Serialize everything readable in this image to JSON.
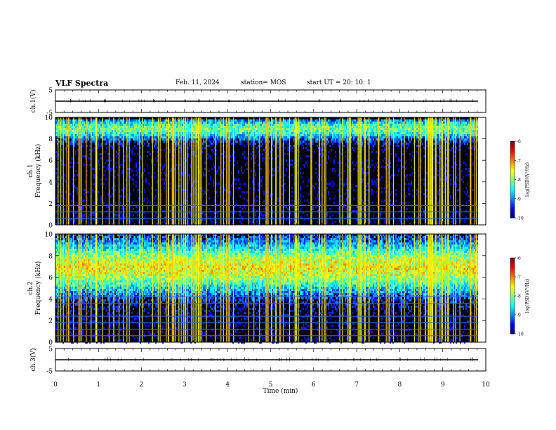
{
  "header": {
    "title": "VLF Spectra",
    "date": "Feb. 11, 2024",
    "station": "station= MOS",
    "start": "start UT = 20: 10: 1"
  },
  "chart_data": [
    {
      "type": "line",
      "panel": "ch1-waveform",
      "ylabel": "ch.1(V)",
      "ylim": [
        -5,
        5
      ],
      "yticks": [
        "5",
        "-5"
      ],
      "x": [
        0,
        10
      ],
      "values": [
        0,
        0
      ]
    },
    {
      "type": "heatmap",
      "panel": "ch1-spectrogram",
      "ylabel_line1": "ch.1",
      "ylabel_line2": "Frequency (kHz)",
      "ylim": [
        0,
        10
      ],
      "yticks": [
        "0",
        "2",
        "4",
        "6",
        "8",
        "10"
      ],
      "colorbar": {
        "label": "log(PSD)(V²/Hz)",
        "range": [
          -10,
          -6
        ],
        "ticks": [
          "-6",
          "-7",
          "-8",
          "-9",
          "-10"
        ]
      },
      "band_center_khz": 9,
      "hum_lines_khz": [
        0.6,
        1.2,
        1.8
      ]
    },
    {
      "type": "heatmap",
      "panel": "ch2-spectrogram",
      "ylabel_line1": "ch.2",
      "ylabel_line2": "Frequency (kHz)",
      "ylim": [
        0,
        10
      ],
      "yticks": [
        "0",
        "2",
        "4",
        "6",
        "8",
        "10"
      ],
      "colorbar": {
        "label": "log(PSD)(V²/Hz)",
        "range": [
          -10,
          -6
        ],
        "ticks": [
          "-6",
          "-7",
          "-8",
          "-9",
          "-10"
        ]
      },
      "band_center_khz": 7,
      "hum_lines_khz": [
        0.6,
        1.2,
        1.8,
        2.4,
        3.6,
        4.2
      ]
    },
    {
      "type": "line",
      "panel": "ch3-waveform",
      "ylabel": "ch.3(V)",
      "ylim": [
        -5,
        5
      ],
      "yticks": [
        "5",
        "-5"
      ],
      "x": [
        0,
        10
      ],
      "values": [
        0,
        0
      ]
    }
  ],
  "xaxis": {
    "label": "Time (min)",
    "range": [
      0,
      10
    ],
    "ticks": [
      "0",
      "1",
      "2",
      "3",
      "4",
      "5",
      "6",
      "7",
      "8",
      "9",
      "10"
    ]
  }
}
